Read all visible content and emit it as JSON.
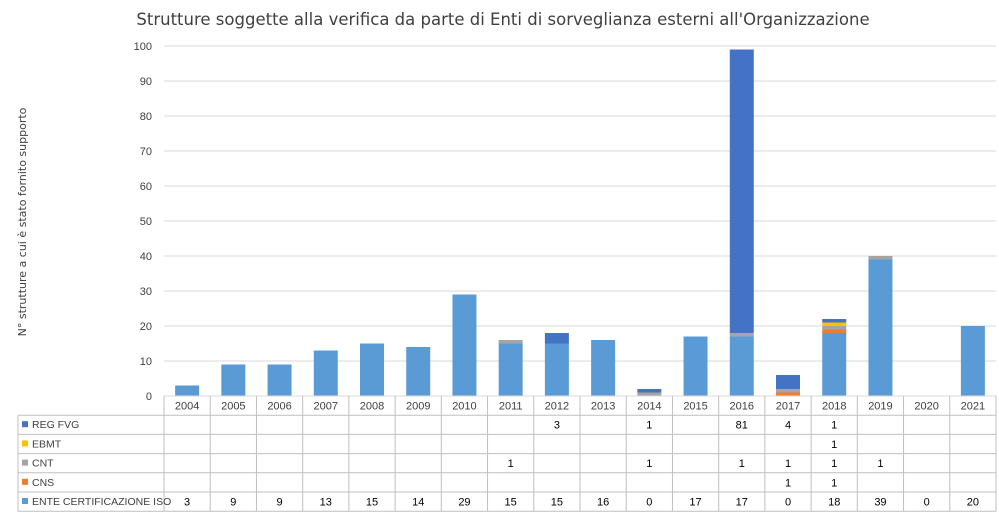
{
  "chart_data": {
    "type": "bar",
    "stacked": true,
    "title": "Strutture soggette alla verifica da parte di Enti di sorveglianza esterni all'Organizzazione",
    "ylabel": "N° strutture a cui è stato fornito supporto",
    "xlabel": "",
    "ylim": [
      0,
      100
    ],
    "yticks": [
      0,
      10,
      20,
      30,
      40,
      50,
      60,
      70,
      80,
      90,
      100
    ],
    "grid": true,
    "legend": "data-table",
    "categories": [
      "2004",
      "2005",
      "2006",
      "2007",
      "2008",
      "2009",
      "2010",
      "2011",
      "2012",
      "2013",
      "2014",
      "2015",
      "2016",
      "2017",
      "2018",
      "2019",
      "2020",
      "2021"
    ],
    "series": [
      {
        "name": "ENTE CERTIFICAZIONE ISO",
        "color": "#5b9bd5",
        "values": [
          3,
          9,
          9,
          13,
          15,
          14,
          29,
          15,
          15,
          16,
          0,
          17,
          17,
          0,
          18,
          39,
          0,
          20
        ],
        "labels": [
          "3",
          "9",
          "9",
          "13",
          "15",
          "14",
          "29",
          "15",
          "15",
          "16",
          "0",
          "17",
          "17",
          "0",
          "18",
          "39",
          "0",
          "20"
        ]
      },
      {
        "name": "CNS",
        "color": "#ed7d31",
        "values": [
          0,
          0,
          0,
          0,
          0,
          0,
          0,
          0,
          0,
          0,
          0,
          0,
          0,
          1,
          1,
          0,
          0,
          0
        ],
        "labels": [
          "",
          "",
          "",
          "",
          "",
          "",
          "",
          "",
          "",
          "",
          "",
          "",
          "",
          "1",
          "1",
          "",
          "",
          ""
        ]
      },
      {
        "name": "CNT",
        "color": "#a5a5a5",
        "values": [
          0,
          0,
          0,
          0,
          0,
          0,
          0,
          1,
          0,
          0,
          1,
          0,
          1,
          1,
          1,
          1,
          0,
          0
        ],
        "labels": [
          "",
          "",
          "",
          "",
          "",
          "",
          "",
          "1",
          "",
          "",
          "1",
          "",
          "1",
          "1",
          "1",
          "1",
          "",
          ""
        ]
      },
      {
        "name": "EBMT",
        "color": "#ffc000",
        "values": [
          0,
          0,
          0,
          0,
          0,
          0,
          0,
          0,
          0,
          0,
          0,
          0,
          0,
          0,
          1,
          0,
          0,
          0
        ],
        "labels": [
          "",
          "",
          "",
          "",
          "",
          "",
          "",
          "",
          "",
          "",
          "",
          "",
          "",
          "",
          "1",
          "",
          "",
          ""
        ]
      },
      {
        "name": "REG FVG",
        "color": "#4472c4",
        "values": [
          0,
          0,
          0,
          0,
          0,
          0,
          0,
          0,
          3,
          0,
          1,
          0,
          81,
          4,
          1,
          0,
          0,
          0
        ],
        "labels": [
          "",
          "",
          "",
          "",
          "",
          "",
          "",
          "",
          "3",
          "",
          "1",
          "",
          "81",
          "4",
          "1",
          "",
          "",
          ""
        ]
      }
    ]
  }
}
